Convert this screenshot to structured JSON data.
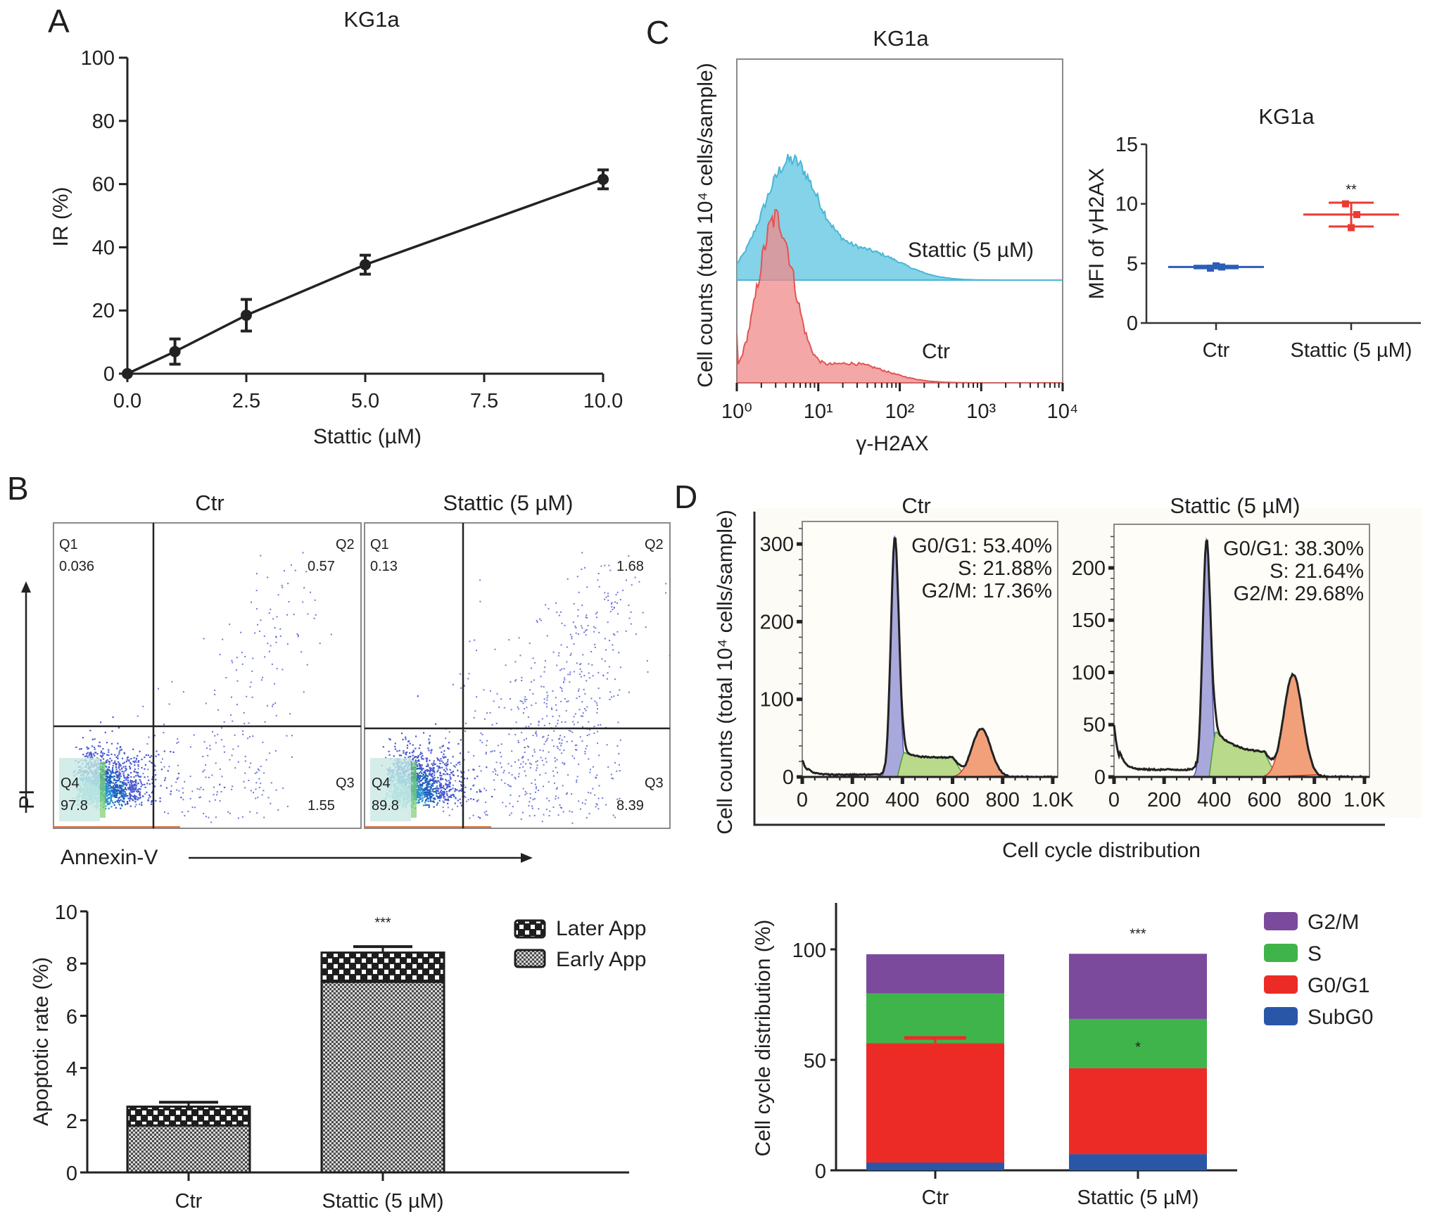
{
  "figure": {
    "panels": [
      "A",
      "B",
      "C",
      "D"
    ]
  },
  "chart_data": [
    {
      "id": "A",
      "type": "line",
      "title": "KG1a",
      "xlabel": "Stattic (µM)",
      "ylabel": "IR (%)",
      "x": [
        0,
        1,
        2.5,
        5,
        10
      ],
      "values": [
        0,
        7,
        18.5,
        34.5,
        61.5
      ],
      "errors": [
        0,
        4,
        5,
        3,
        3
      ],
      "xlim": [
        0,
        10
      ],
      "ylim": [
        0,
        100
      ],
      "xticks": [
        0,
        2.5,
        5,
        7.5,
        10
      ],
      "xtick_labels": [
        "0.0",
        "2.5",
        "5.0",
        "7.5",
        "10.0"
      ],
      "yticks": [
        0,
        20,
        40,
        60,
        80,
        100
      ],
      "grid": false
    },
    {
      "id": "B-flow",
      "type": "scatter",
      "xlabel": "Annexin-V",
      "ylabel": "PI",
      "plots": [
        {
          "title": "Ctr",
          "quadrants": {
            "Q1": "0.036",
            "Q2": "0.57",
            "Q3": "1.55",
            "Q4": "97.8"
          }
        },
        {
          "title": "Stattic (5 µM)",
          "quadrants": {
            "Q1": "0.13",
            "Q2": "1.68",
            "Q3": "8.39",
            "Q4": "89.8"
          }
        }
      ]
    },
    {
      "id": "B-bar",
      "type": "bar",
      "stacked": true,
      "categories": [
        "Ctr",
        "Stattic (5 µM)"
      ],
      "series": [
        {
          "name": "Early App",
          "values": [
            1.8,
            7.3
          ],
          "errors": [
            0.15,
            0.3
          ]
        },
        {
          "name": "Later App",
          "values": [
            0.72,
            1.12
          ],
          "errors": [
            0.17,
            0.23
          ]
        }
      ],
      "ylabel": "Apoptotic rate (%)",
      "ylim": [
        0,
        10
      ],
      "yticks": [
        0,
        2,
        4,
        6,
        8,
        10
      ],
      "annotations": [
        {
          "category": "Stattic (5 µM)",
          "text": "***"
        }
      ],
      "legend": "top-right"
    },
    {
      "id": "C-hist",
      "type": "area",
      "title": "KG1a",
      "xlabel": "γ-H2AX",
      "ylabel": "Cell counts (total 10⁴ cells/sample)",
      "xscale": "log",
      "xlim": [
        1,
        10000
      ],
      "xtick_labels": [
        "10⁰",
        "10¹",
        "10²",
        "10³",
        "10⁴"
      ],
      "series": [
        {
          "name": "Stattic (5 µM)",
          "color": "#5bc4e0",
          "peak_x": 4.5,
          "offset": "stacked-above"
        },
        {
          "name": "Ctr",
          "color": "#f08a8a",
          "peak_x": 3.0
        }
      ]
    },
    {
      "id": "C-mfi",
      "type": "scatter",
      "title": "KG1a",
      "ylabel": "MFI of γH2AX",
      "categories": [
        "Ctr",
        "Stattic (5 µM)"
      ],
      "series": [
        {
          "name": "Ctr",
          "color": "#2c5db8",
          "points": [
            4.6,
            4.7,
            4.8
          ],
          "mean": 4.7,
          "sd": 0.1
        },
        {
          "name": "Stattic (5 µM)",
          "color": "#ec3a33",
          "points": [
            10.0,
            9.1,
            8.0
          ],
          "mean": 9.1,
          "sd": 1.0
        }
      ],
      "ylim": [
        0,
        15
      ],
      "yticks": [
        0,
        5,
        10,
        15
      ],
      "annotations": [
        {
          "category": "Stattic (5 µM)",
          "text": "**"
        }
      ]
    },
    {
      "id": "D-hist",
      "type": "area",
      "ylabel": "Cell counts (total 10⁴ cells/sample)",
      "xlabel": "Cell cycle distribution",
      "xtick_labels": [
        "0",
        "200",
        "400",
        "600",
        "800",
        "1.0K"
      ],
      "plots": [
        {
          "title": "Ctr",
          "ylim": [
            0,
            320
          ],
          "yticks": [
            0,
            100,
            200,
            300
          ],
          "stats": [
            "G0/G1: 53.40%",
            "S: 21.88%",
            "G2/M: 17.36%"
          ],
          "g1_peak": 310,
          "g2_peak": 62,
          "s_level": 25,
          "subg0": 22,
          "debris": 3
        },
        {
          "title": "Stattic (5 µM)",
          "ylim": [
            0,
            235
          ],
          "yticks": [
            0,
            50,
            100,
            150,
            200
          ],
          "stats": [
            "G0/G1: 38.30%",
            "S: 21.64%",
            "G2/M: 29.68%"
          ],
          "g1_peak": 228,
          "g2_peak": 98,
          "s_level": 22,
          "subg0": 50,
          "debris": 7
        }
      ]
    },
    {
      "id": "D-bar",
      "type": "bar",
      "stacked": true,
      "categories": [
        "Ctr",
        "Stattic (5 µM)"
      ],
      "series": [
        {
          "name": "SubG0",
          "color": "#2a56a8",
          "values": [
            3.5,
            7.3
          ]
        },
        {
          "name": "G0/G1",
          "color": "#ec2b27",
          "values": [
            54.1,
            38.9
          ]
        },
        {
          "name": "S",
          "color": "#3fb44a",
          "values": [
            22.4,
            22.3
          ]
        },
        {
          "name": "G2/M",
          "color": "#7b4a9c",
          "values": [
            17.8,
            29.5
          ]
        }
      ],
      "ylabel": "Cell cycle distribution (%)",
      "ylim": [
        0,
        120
      ],
      "yticks": [
        0,
        50,
        100
      ],
      "annotations": [
        {
          "category": "Stattic (5 µM)",
          "text": "***",
          "position": "above"
        },
        {
          "category": "Stattic (5 µM)",
          "text": "*",
          "position": "S segment"
        }
      ],
      "legend": "top-right",
      "legend_order": [
        "G2/M",
        "S",
        "G0/G1",
        "SubG0"
      ]
    }
  ],
  "labels": {
    "A": {
      "letter": "A",
      "title": "KG1a",
      "xlabel": "Stattic (µM)",
      "ylabel": "IR (%)"
    },
    "B": {
      "letter": "B",
      "ctr": "Ctr",
      "stattic": "Stattic (5 µM)",
      "pi": "PI",
      "annexin": "Annexin-V",
      "q1": "Q1",
      "q2": "Q2",
      "q3": "Q3",
      "q4": "Q4",
      "bar_ylabel": "Apoptotic rate (%)",
      "sig": "***",
      "legend_later": "Later App",
      "legend_early": "Early App"
    },
    "C": {
      "letter": "C",
      "title": "KG1a",
      "stattic": "Stattic (5 µM)",
      "ctr": "Ctr",
      "ylabel": "Cell counts (total 10⁴ cells/sample)",
      "xlabel": "γ-H2AX",
      "mfi_title": "KG1a",
      "mfi_ylabel": "MFI of γH2AX",
      "sig": "**"
    },
    "D": {
      "letter": "D",
      "ctr": "Ctr",
      "stattic": "Stattic (5 µM)",
      "ylabel": "Cell counts (total 10⁴ cells/sample)",
      "xlabel": "Cell cycle distribution",
      "bar_ylabel": "Cell cycle distribution (%)",
      "sig3": "***",
      "sig1": "*",
      "legend": [
        "G2/M",
        "S",
        "G0/G1",
        "SubG0"
      ]
    }
  }
}
